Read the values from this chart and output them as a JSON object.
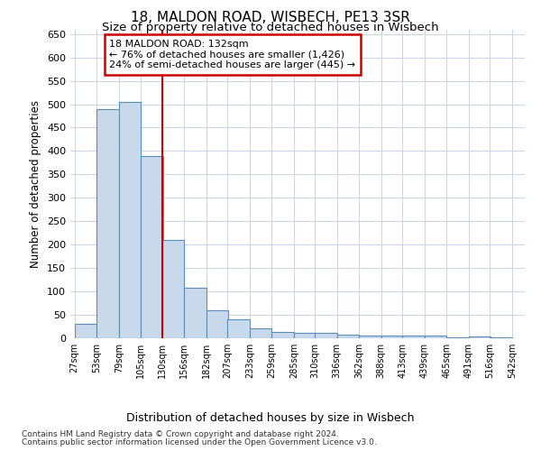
{
  "title1": "18, MALDON ROAD, WISBECH, PE13 3SR",
  "title2": "Size of property relative to detached houses in Wisbech",
  "xlabel": "Distribution of detached houses by size in Wisbech",
  "ylabel": "Number of detached properties",
  "footnote1": "Contains HM Land Registry data © Crown copyright and database right 2024.",
  "footnote2": "Contains public sector information licensed under the Open Government Licence v3.0.",
  "annotation_line1": "18 MALDON ROAD: 132sqm",
  "annotation_line2": "← 76% of detached houses are smaller (1,426)",
  "annotation_line3": "24% of semi-detached houses are larger (445) →",
  "bar_left_edges": [
    27,
    53,
    79,
    105,
    130,
    156,
    182,
    207,
    233,
    259,
    285,
    310,
    336,
    362,
    388,
    413,
    439,
    465,
    491,
    516
  ],
  "bar_labels": [
    "27sqm",
    "53sqm",
    "79sqm",
    "105sqm",
    "130sqm",
    "156sqm",
    "182sqm",
    "207sqm",
    "233sqm",
    "259sqm",
    "285sqm",
    "310sqm",
    "336sqm",
    "362sqm",
    "388sqm",
    "413sqm",
    "439sqm",
    "465sqm",
    "491sqm",
    "516sqm",
    "542sqm"
  ],
  "bar_heights": [
    30,
    490,
    505,
    390,
    210,
    107,
    60,
    40,
    22,
    14,
    12,
    11,
    8,
    6,
    5,
    5,
    5,
    1,
    3,
    2
  ],
  "bar_color": "#c9d9ec",
  "bar_edge_color": "#5b8db8",
  "vline_x": 130,
  "vline_color": "#cc0000",
  "annotation_box_color": "#cc0000",
  "grid_color": "#c8d4e8",
  "ylim": [
    0,
    660
  ],
  "background_color": "#ffffff"
}
